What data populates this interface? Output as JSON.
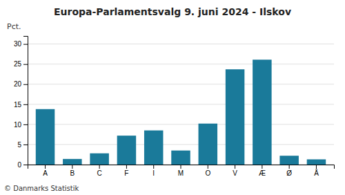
{
  "chart_data": {
    "type": "bar",
    "title": "Europa-Parlamentsvalg 9. juni 2024 - Ilskov",
    "categories": [
      "A",
      "B",
      "C",
      "F",
      "I",
      "M",
      "O",
      "V",
      "Æ",
      "Ø",
      "Å"
    ],
    "values": [
      13.8,
      1.4,
      2.8,
      7.2,
      8.5,
      3.5,
      10.2,
      23.7,
      26.1,
      2.2,
      1.3
    ],
    "color": "#1a7a9a",
    "ylabel": "Pct.",
    "ylim": [
      0,
      32
    ],
    "yticks": [
      0,
      5,
      10,
      15,
      20,
      25,
      30
    ],
    "grid": true,
    "annotations": [
      "© Danmarks Statistik"
    ]
  }
}
